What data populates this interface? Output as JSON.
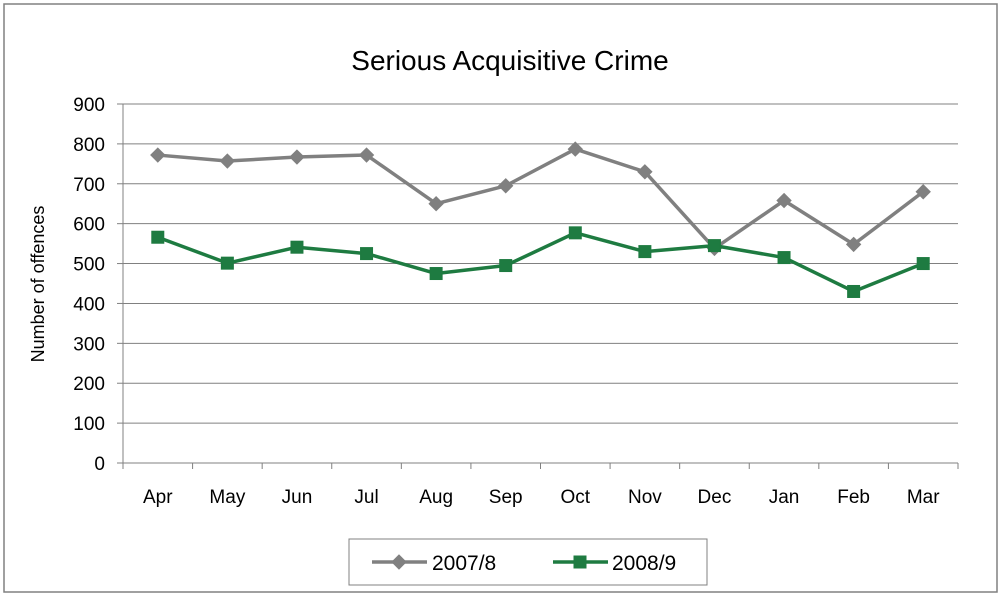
{
  "chart_data": {
    "type": "line",
    "title": "Serious Acquisitive Crime",
    "xlabel": "",
    "ylabel": "Number of offences",
    "categories": [
      "Apr",
      "May",
      "Jun",
      "Jul",
      "Aug",
      "Sep",
      "Oct",
      "Nov",
      "Dec",
      "Jan",
      "Feb",
      "Mar"
    ],
    "ylim": [
      0,
      900
    ],
    "yticks": [
      0,
      100,
      200,
      300,
      400,
      500,
      600,
      700,
      800,
      900
    ],
    "grid": "horizontal",
    "legend_position": "bottom",
    "series": [
      {
        "name": "2007/8",
        "color": "#808080",
        "marker": "diamond",
        "values": [
          772,
          757,
          767,
          772,
          650,
          695,
          787,
          730,
          538,
          658,
          548,
          680
        ]
      },
      {
        "name": "2008/9",
        "color": "#1e7b41",
        "marker": "square",
        "values": [
          566,
          501,
          541,
          525,
          475,
          495,
          577,
          530,
          545,
          515,
          430,
          500
        ]
      }
    ]
  }
}
